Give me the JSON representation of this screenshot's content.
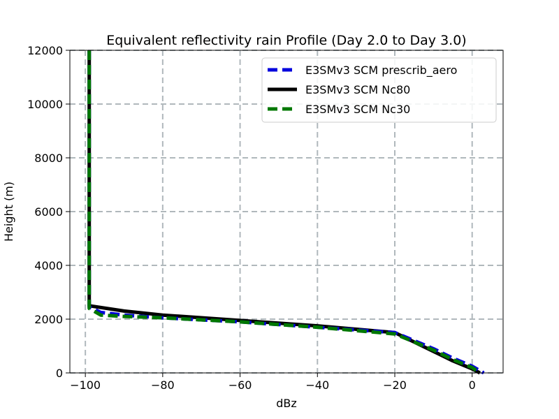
{
  "chart_data": {
    "type": "line",
    "title": "Equivalent reflectivity rain Profile (Day 2.0 to Day 3.0)",
    "xlabel": "dBz",
    "ylabel": "Height (m)",
    "xlim": [
      -104,
      8
    ],
    "ylim": [
      0,
      12000
    ],
    "xticks": [
      -100,
      -80,
      -60,
      -40,
      -20,
      0
    ],
    "xtick_labels": [
      "−100",
      "−80",
      "−60",
      "−40",
      "−20",
      "0"
    ],
    "yticks": [
      0,
      2000,
      4000,
      6000,
      8000,
      10000,
      12000
    ],
    "ytick_labels": [
      "0",
      "2000",
      "4000",
      "6000",
      "8000",
      "10000",
      "12000"
    ],
    "grid": true,
    "legend_position": "top-right",
    "series": [
      {
        "name": "E3SMv3 SCM Nc80",
        "color": "#000000",
        "dash": "solid",
        "points": [
          [
            -99,
            12000
          ],
          [
            -99,
            2500
          ],
          [
            -90,
            2300
          ],
          [
            -80,
            2150
          ],
          [
            -60,
            1950
          ],
          [
            -40,
            1750
          ],
          [
            -20,
            1500
          ],
          [
            -15,
            1150
          ],
          [
            -10,
            800
          ],
          [
            -5,
            450
          ],
          [
            0,
            150
          ],
          [
            2,
            0
          ]
        ]
      },
      {
        "name": "E3SMv3 SCM prescrib_aero",
        "color": "#0000dd",
        "dash": "dashed",
        "points": [
          [
            -99,
            12000
          ],
          [
            -99,
            2450
          ],
          [
            -96,
            2250
          ],
          [
            -90,
            2150
          ],
          [
            -80,
            2050
          ],
          [
            -60,
            1900
          ],
          [
            -40,
            1700
          ],
          [
            -20,
            1500
          ],
          [
            -15,
            1200
          ],
          [
            -10,
            900
          ],
          [
            -5,
            550
          ],
          [
            0,
            250
          ],
          [
            3,
            0
          ]
        ]
      },
      {
        "name": "E3SMv3 SCM Nc30",
        "color": "#007700",
        "dash": "dashed",
        "points": [
          [
            -99,
            12000
          ],
          [
            -99,
            2400
          ],
          [
            -96,
            2150
          ],
          [
            -90,
            2100
          ],
          [
            -80,
            2050
          ],
          [
            -60,
            1900
          ],
          [
            -40,
            1700
          ],
          [
            -20,
            1450
          ],
          [
            -15,
            1150
          ],
          [
            -10,
            850
          ],
          [
            -5,
            500
          ],
          [
            0,
            200
          ],
          [
            2,
            0
          ]
        ]
      }
    ],
    "legend_order": [
      "E3SMv3 SCM prescrib_aero",
      "E3SMv3 SCM Nc80",
      "E3SMv3 SCM Nc30"
    ]
  }
}
